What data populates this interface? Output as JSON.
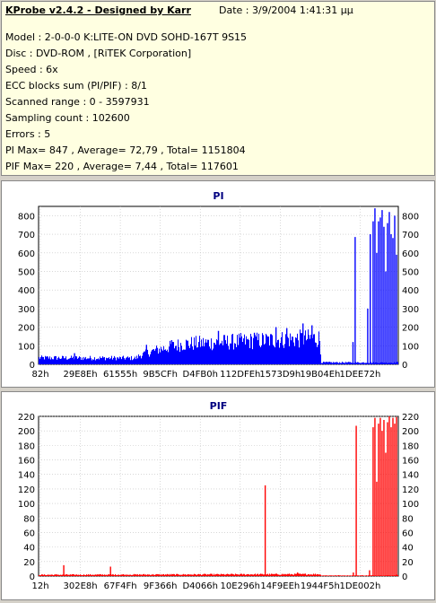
{
  "info": {
    "title": "KProbe v2.4.2 - Designed by Karr",
    "date": "Date : 3/9/2004 1:41:31 μμ",
    "lines": [
      "Model : 2-0-0-0 K:LITE-ON DVD SOHD-167T    9S15",
      "Disc : DVD-ROM ,  [RiTEK Corporation]",
      "Speed : 6x",
      "ECC blocks sum (PI/PIF) : 8/1",
      "Scanned range : 0 - 3597931",
      "Sampling count : 102600",
      "Errors : 5",
      "PI Max= 847 , Average= 72,79 , Total= 1151804",
      "PIF Max= 220 , Average= 7,44 , Total= 117601"
    ]
  },
  "colors": {
    "pi": "#0000ff",
    "pif": "#ff0000",
    "title": "#000080",
    "plot_bg": "#ffffff"
  },
  "chart_data": [
    {
      "type": "bar",
      "title": "PI",
      "ylim": [
        0,
        850
      ],
      "yticks": [
        0,
        100,
        200,
        300,
        400,
        500,
        600,
        700,
        800
      ],
      "xticks": [
        "82h",
        "29E8Eh",
        "61555h",
        "9B5CFh",
        "D4FB0h",
        "112DFEh",
        "1573D9h",
        "19B04Eh",
        "1DEE72h"
      ],
      "grid": true,
      "baseline_profile": [
        [
          0,
          40
        ],
        [
          0.27,
          38
        ],
        [
          0.28,
          55
        ],
        [
          0.33,
          90
        ],
        [
          0.4,
          125
        ],
        [
          0.55,
          140
        ],
        [
          0.65,
          150
        ],
        [
          0.76,
          160
        ],
        [
          0.78,
          160
        ],
        [
          0.785,
          12
        ],
        [
          0.98,
          10
        ],
        [
          1.0,
          12
        ]
      ],
      "spikes": [
        [
          0.1,
          60
        ],
        [
          0.3,
          105
        ],
        [
          0.37,
          130
        ],
        [
          0.5,
          180
        ],
        [
          0.6,
          170
        ],
        [
          0.66,
          200
        ],
        [
          0.69,
          195
        ],
        [
          0.735,
          220
        ],
        [
          0.76,
          210
        ],
        [
          0.874,
          120
        ],
        [
          0.88,
          685
        ],
        [
          0.915,
          300
        ],
        [
          0.922,
          700
        ],
        [
          0.93,
          770
        ],
        [
          0.935,
          840
        ],
        [
          0.94,
          600
        ],
        [
          0.945,
          770
        ],
        [
          0.95,
          790
        ],
        [
          0.955,
          830
        ],
        [
          0.96,
          740
        ],
        [
          0.965,
          500
        ],
        [
          0.97,
          760
        ],
        [
          0.975,
          820
        ],
        [
          0.98,
          700
        ],
        [
          0.985,
          680
        ],
        [
          0.99,
          800
        ],
        [
          0.995,
          590
        ]
      ]
    },
    {
      "type": "bar",
      "title": "PIF",
      "ylim": [
        0,
        220
      ],
      "yticks": [
        0,
        20,
        40,
        60,
        80,
        100,
        120,
        140,
        160,
        180,
        200,
        220
      ],
      "xticks": [
        "12h",
        "302E8h",
        "67F4Fh",
        "9F366h",
        "D4066h",
        "10E296h",
        "14F9EEh",
        "1944F5h",
        "1DE002h"
      ],
      "grid": true,
      "baseline_profile": [
        [
          0,
          2
        ],
        [
          0.78,
          3
        ],
        [
          0.785,
          1
        ],
        [
          0.98,
          1
        ],
        [
          1.0,
          2
        ]
      ],
      "spikes": [
        [
          0.07,
          15
        ],
        [
          0.2,
          13
        ],
        [
          0.63,
          125
        ],
        [
          0.72,
          5
        ],
        [
          0.875,
          5
        ],
        [
          0.883,
          207
        ],
        [
          0.92,
          8
        ],
        [
          0.93,
          205
        ],
        [
          0.935,
          218
        ],
        [
          0.94,
          130
        ],
        [
          0.945,
          210
        ],
        [
          0.95,
          218
        ],
        [
          0.955,
          200
        ],
        [
          0.96,
          215
        ],
        [
          0.965,
          170
        ],
        [
          0.97,
          212
        ],
        [
          0.975,
          220
        ],
        [
          0.98,
          205
        ],
        [
          0.985,
          218
        ],
        [
          0.99,
          210
        ],
        [
          0.995,
          219
        ]
      ]
    }
  ]
}
